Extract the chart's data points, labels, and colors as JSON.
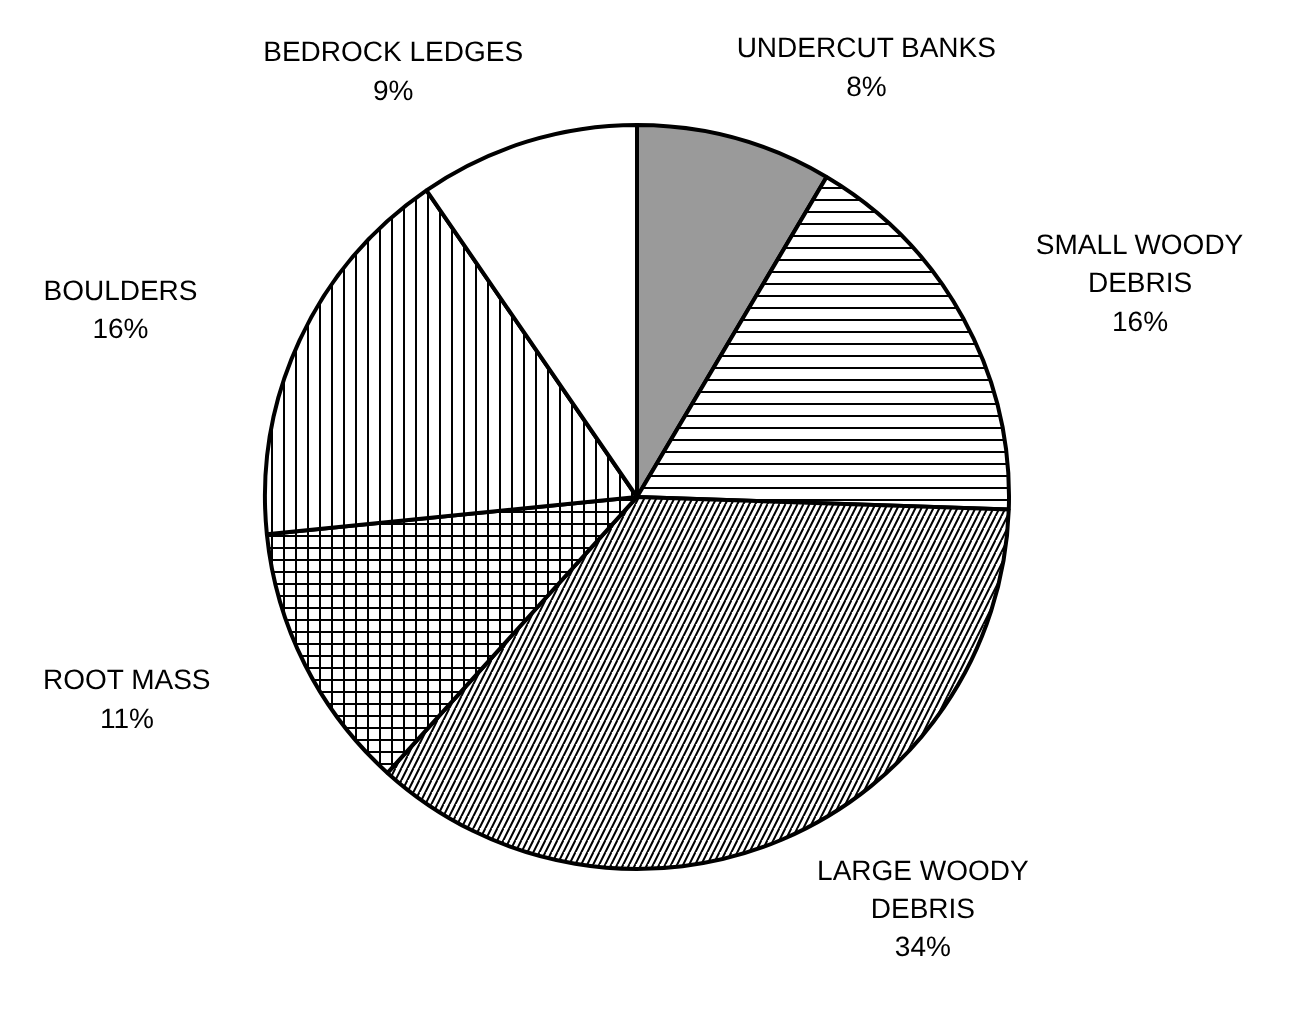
{
  "chart_data": {
    "type": "pie",
    "categories": [
      "UNDERCUT BANKS",
      "SMALL WOODY\nDEBRIS",
      "LARGE WOODY\nDEBRIS",
      "ROOT MASS",
      "BOULDERS",
      "BEDROCK LEDGES"
    ],
    "values": [
      8,
      16,
      34,
      11,
      16,
      9
    ],
    "value_labels": [
      "8%",
      "16%",
      "34%",
      "11%",
      "16%",
      "9%"
    ],
    "colors": [
      "#9a9a9a",
      "#ffffff",
      "#ffffff",
      "#ffffff",
      "#ffffff",
      "#ffffff"
    ]
  }
}
